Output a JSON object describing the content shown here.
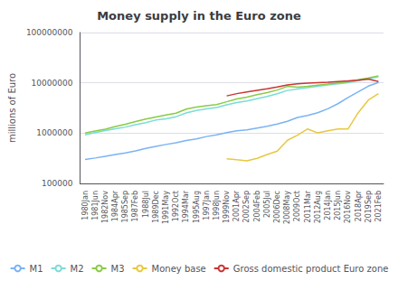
{
  "chart_data": {
    "type": "line",
    "title": "Money supply in the Euro zone",
    "ylabel": "millions of Euro",
    "categories": [
      "1980Jan",
      "1981Jun",
      "1982Nov",
      "1984Apr",
      "1985Sep",
      "1987Feb",
      "1988Jul",
      "1989Dec",
      "1991May",
      "1992Oct",
      "1994Mar",
      "1995Aug",
      "1997Jan",
      "1998Jun",
      "1999Nov",
      "2001Apr",
      "2002Sep",
      "2004Feb",
      "2005Jul",
      "2006Dec",
      "2008May",
      "2009Oct",
      "2011Mar",
      "2012Aug",
      "2014Jan",
      "2015Jun",
      "2016Nov",
      "2018Apr",
      "2019Sep",
      "2021Feb"
    ],
    "series": [
      {
        "name": "M1",
        "color": "#7ab3f5",
        "values": [
          300000,
          320000,
          345000,
          375000,
          405000,
          445000,
          495000,
          545000,
          595000,
          645000,
          715000,
          765000,
          855000,
          925000,
          1020000,
          1110000,
          1160000,
          1260000,
          1370000,
          1520000,
          1720000,
          2050000,
          2250000,
          2550000,
          3050000,
          3850000,
          5100000,
          6600000,
          8600000,
          10200000
        ]
      },
      {
        "name": "M2",
        "color": "#7adcd8",
        "values": [
          920000,
          1020000,
          1120000,
          1220000,
          1320000,
          1470000,
          1620000,
          1820000,
          1920000,
          2120000,
          2520000,
          2820000,
          3020000,
          3220000,
          3650000,
          4050000,
          4350000,
          4850000,
          5350000,
          6050000,
          7050000,
          7550000,
          8050000,
          8550000,
          9050000,
          9550000,
          10050000,
          11050000,
          12050000,
          13200000
        ]
      },
      {
        "name": "M3",
        "color": "#88cc44",
        "values": [
          1000000,
          1100000,
          1200000,
          1350000,
          1500000,
          1700000,
          1900000,
          2100000,
          2300000,
          2500000,
          3000000,
          3300000,
          3500000,
          3700000,
          4200000,
          4800000,
          5200000,
          5800000,
          6400000,
          7200000,
          8500000,
          8200000,
          8500000,
          9000000,
          9500000,
          10000000,
          10500000,
          11500000,
          12500000,
          13800000
        ]
      },
      {
        "name": "Money base",
        "color": "#e8c840",
        "values": [
          null,
          null,
          null,
          null,
          null,
          null,
          null,
          null,
          null,
          null,
          null,
          null,
          null,
          null,
          310000,
          295000,
          282000,
          315000,
          375000,
          440000,
          720000,
          910000,
          1210000,
          1010000,
          1110000,
          1210000,
          1210000,
          2550000,
          4550000,
          6100000
        ]
      },
      {
        "name": "Gross domestic product Euro zone",
        "color": "#cc3333",
        "values": [
          null,
          null,
          null,
          null,
          null,
          null,
          null,
          null,
          null,
          null,
          null,
          null,
          null,
          null,
          5500000,
          6100000,
          6600000,
          7100000,
          7600000,
          8300000,
          9100000,
          9600000,
          9900000,
          10100000,
          10300000,
          10600000,
          10900000,
          11300000,
          11900000,
          10600000
        ]
      }
    ],
    "ylim": [
      100000,
      100000000
    ],
    "yticks": [
      100000,
      1000000,
      10000000,
      100000000
    ],
    "log": "y",
    "grid": true,
    "legend": "bottom"
  }
}
